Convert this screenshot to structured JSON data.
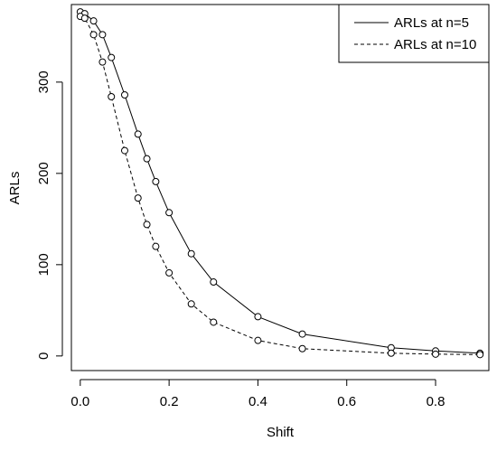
{
  "chart_data": {
    "type": "line",
    "xlabel": "Shift",
    "ylabel": "ARLs",
    "xlim": [
      -0.02,
      0.92
    ],
    "ylim": [
      -16,
      385
    ],
    "x_ticks": [
      "0.0",
      "0.2",
      "0.4",
      "0.6",
      "0.8"
    ],
    "x_tick_values": [
      0.0,
      0.2,
      0.4,
      0.6,
      0.8
    ],
    "y_ticks": [
      "0",
      "100",
      "200",
      "300"
    ],
    "y_tick_values": [
      0,
      100,
      200,
      300
    ],
    "grid": false,
    "legend_position": "top-right",
    "series": [
      {
        "name": "ARLs at n=5",
        "line_style": "solid",
        "marker": "open-circle",
        "x": [
          0.0,
          0.01,
          0.03,
          0.05,
          0.07,
          0.1,
          0.13,
          0.15,
          0.17,
          0.2,
          0.25,
          0.3,
          0.4,
          0.5,
          0.7,
          0.8,
          0.9
        ],
        "y": [
          377,
          375,
          367,
          352,
          327,
          286,
          243,
          216,
          191,
          157,
          112,
          81,
          43,
          24,
          9,
          5.5,
          3
        ]
      },
      {
        "name": "ARLs at n=10",
        "line_style": "dashed",
        "marker": "open-circle",
        "x": [
          0.0,
          0.01,
          0.03,
          0.05,
          0.07,
          0.1,
          0.13,
          0.15,
          0.17,
          0.2,
          0.25,
          0.3,
          0.4,
          0.5,
          0.7,
          0.8,
          0.9
        ],
        "y": [
          372,
          370,
          352,
          322,
          284,
          225,
          173,
          144,
          120,
          91,
          57,
          37,
          17,
          8,
          3,
          2,
          1.5
        ]
      }
    ]
  }
}
